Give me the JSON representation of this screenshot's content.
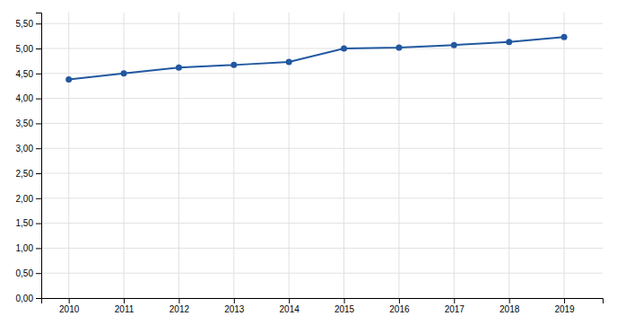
{
  "chart_data": {
    "type": "line",
    "x": [
      2010,
      2011,
      2012,
      2013,
      2014,
      2015,
      2016,
      2017,
      2018,
      2019
    ],
    "values": [
      4.38,
      4.5,
      4.62,
      4.67,
      4.73,
      5.0,
      5.02,
      5.07,
      5.13,
      5.23
    ],
    "color": "#2158A0",
    "marker": "circle",
    "xlim": [
      2009.5,
      2019.7
    ],
    "xticks": [
      2010,
      2011,
      2012,
      2013,
      2014,
      2015,
      2016,
      2017,
      2018,
      2019
    ],
    "ylim": [
      0.0,
      5.72
    ],
    "yticks": [
      {
        "value": 0.0,
        "label": "0,00"
      },
      {
        "value": 0.5,
        "label": "0,50"
      },
      {
        "value": 1.0,
        "label": "1,00"
      },
      {
        "value": 1.5,
        "label": "1,50"
      },
      {
        "value": 2.0,
        "label": "2,00"
      },
      {
        "value": 2.5,
        "label": "2,50"
      },
      {
        "value": 3.0,
        "label": "3,00"
      },
      {
        "value": 3.5,
        "label": "3,50"
      },
      {
        "value": 4.0,
        "label": "4,00"
      },
      {
        "value": 4.5,
        "label": "4,50"
      },
      {
        "value": 5.0,
        "label": "5,00"
      },
      {
        "value": 5.5,
        "label": "5,50"
      }
    ],
    "grid": true
  }
}
